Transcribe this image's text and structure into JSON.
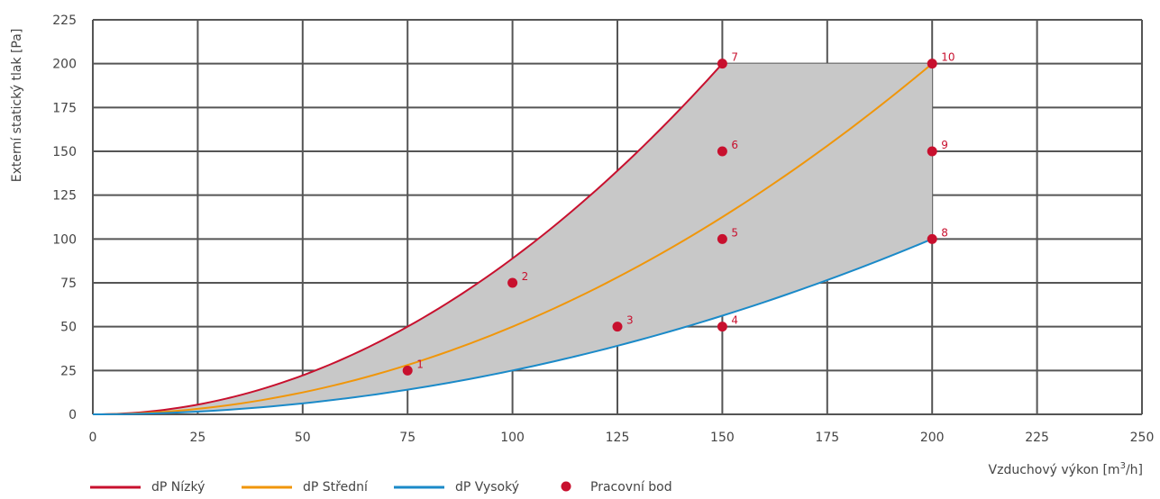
{
  "chart_data": {
    "type": "line",
    "xlabel": "Vzduchový výkon [m",
    "xlabel_sup": "3",
    "xlabel_suffix": "/h]",
    "ylabel": "Externí statický tlak [Pa]",
    "xlim": [
      0,
      250
    ],
    "ylim": [
      0,
      225
    ],
    "x_ticks": [
      0,
      25,
      50,
      75,
      100,
      125,
      150,
      175,
      200,
      225,
      250
    ],
    "y_ticks": [
      0,
      25,
      50,
      75,
      100,
      125,
      150,
      175,
      200,
      225
    ],
    "grid": true,
    "shaded_region": {
      "color": "#c8c8c8",
      "upper_curve": "dP Nízký",
      "top_y": 200,
      "lower_curve": "dP Vysoký",
      "x_end": 200
    },
    "series": [
      {
        "name": "dP Nízký",
        "color": "#c8102e",
        "x_max": 150,
        "y_at_x_max": 200
      },
      {
        "name": "dP Střední",
        "color": "#f0960a",
        "x_max": 200,
        "y_at_x_max": 200
      },
      {
        "name": "dP Vysoký",
        "color": "#1b8ac8",
        "x_max": 200,
        "y_at_x_max": 100
      }
    ],
    "points": {
      "name": "Pracovní bod",
      "color": "#c8102e",
      "data": [
        {
          "label": "1",
          "x": 75,
          "y": 25
        },
        {
          "label": "2",
          "x": 100,
          "y": 75
        },
        {
          "label": "3",
          "x": 125,
          "y": 50
        },
        {
          "label": "4",
          "x": 150,
          "y": 50
        },
        {
          "label": "5",
          "x": 150,
          "y": 100
        },
        {
          "label": "6",
          "x": 150,
          "y": 150
        },
        {
          "label": "7",
          "x": 150,
          "y": 200
        },
        {
          "label": "8",
          "x": 200,
          "y": 100
        },
        {
          "label": "9",
          "x": 200,
          "y": 150
        },
        {
          "label": "10",
          "x": 200,
          "y": 200
        }
      ]
    },
    "legend": {
      "placement": "bottom-left",
      "entries": [
        "dP Nízký",
        "dP Střední",
        "dP Vysoký",
        "Pracovní bod"
      ]
    }
  }
}
